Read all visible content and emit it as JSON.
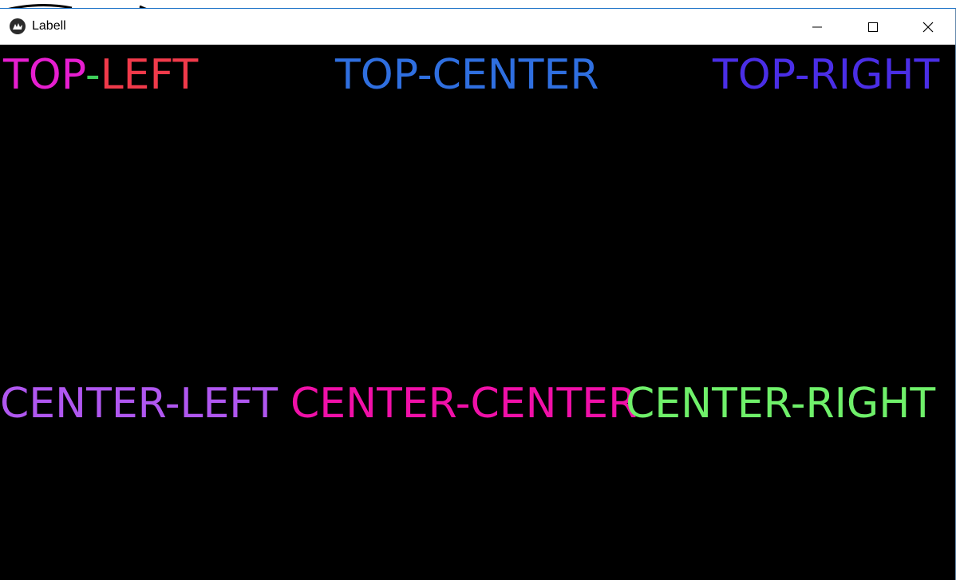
{
  "window": {
    "title": "Labell",
    "icon": "kivy-app-icon",
    "controls": [
      "minimize-icon",
      "maximize-icon",
      "close-icon"
    ]
  },
  "labels": {
    "top_left": {
      "text_a": "TOP-",
      "text_b": "LEFT",
      "color_a": "#e61ed0",
      "dash_color": "#3ecf5a",
      "color_b": "#f03a4a"
    },
    "top_center": {
      "text": "TOP-CENTER",
      "color": "#2f6fe0"
    },
    "top_right": {
      "text": "TOP-RIGHT",
      "color": "#4a2ee6"
    },
    "center_left": {
      "text": "CENTER-LEFT",
      "color": "#b057f0"
    },
    "center_center": {
      "text": "CENTER-CENTER",
      "color": "#f010a8"
    },
    "center_right": {
      "text": "CENTER-RIGHT",
      "color": "#6ff06a"
    }
  },
  "colors": {
    "background": "#000000",
    "titlebar": "#ffffff",
    "window_border": "#1e73c8"
  }
}
